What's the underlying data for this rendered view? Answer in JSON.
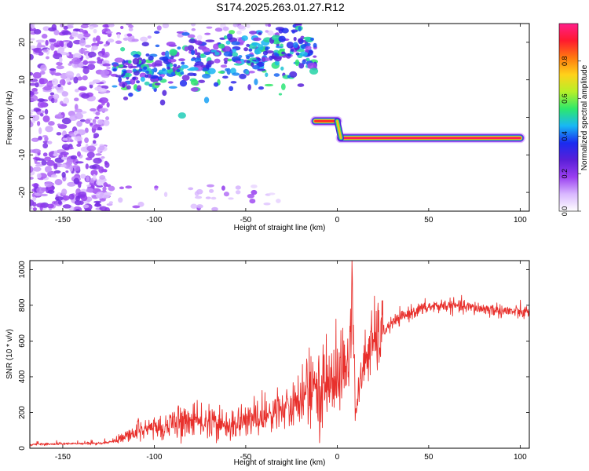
{
  "figure_title": "S174.2025.263.01.27.R12",
  "colors": {
    "snr_line": "#e8302c",
    "axis": "#000000",
    "colormap": [
      "#ffffff",
      "#d9b8ff",
      "#9a3ff0",
      "#5a1fd8",
      "#1a2bf0",
      "#18b7f5",
      "#2de86b",
      "#b6f028",
      "#ffd21a",
      "#ff7a10",
      "#ff1a2e",
      "#ff1f8a"
    ]
  },
  "chart_data": [
    {
      "type": "heatmap",
      "title": "",
      "xlabel": "Height of straight line (km)",
      "ylabel": "Frequency (Hz)",
      "xlim": [
        -168,
        105
      ],
      "ylim": [
        -25,
        25
      ],
      "x_ticks": [
        -150,
        -100,
        -50,
        0,
        50,
        100
      ],
      "y_ticks": [
        -20,
        -10,
        0,
        10,
        20
      ],
      "colorbar": {
        "label": "Normalized spectral amplitude",
        "range": [
          0,
          1
        ],
        "ticks": [
          0.0,
          0.2,
          0.4,
          0.6,
          0.8
        ]
      },
      "features": [
        {
          "name": "low-amplitude scatter",
          "x_range": [
            -168,
            -125
          ],
          "y_range": [
            -25,
            25
          ],
          "amplitude": 0.15
        },
        {
          "name": "band",
          "x_start": -122,
          "y_start": 12,
          "x_end": -12,
          "y_end": 18,
          "amplitude": 0.45
        },
        {
          "name": "carrier",
          "x_start": -12,
          "y_start": -1,
          "x_end": 0,
          "y_end": -1,
          "amplitude": 0.9
        },
        {
          "name": "carrier",
          "x_start": 2,
          "y_start": -5.5,
          "x_end": 100,
          "y_end": -5.5,
          "amplitude": 0.95
        }
      ]
    },
    {
      "type": "line",
      "title": "",
      "xlabel": "Height of straight line (km)",
      "ylabel": "SNR (10 * v/v)",
      "xlim": [
        -168,
        105
      ],
      "ylim": [
        0,
        1050
      ],
      "x_ticks": [
        -150,
        -100,
        -50,
        0,
        50,
        100
      ],
      "y_ticks": [
        0,
        200,
        400,
        600,
        800,
        1000
      ],
      "series": [
        {
          "name": "SNR",
          "x": [
            -168,
            -150,
            -130,
            -120,
            -110,
            -100,
            -90,
            -80,
            -70,
            -60,
            -50,
            -40,
            -30,
            -20,
            -15,
            -10,
            -5,
            0,
            5,
            7,
            8,
            10,
            15,
            20,
            25,
            30,
            40,
            50,
            60,
            70,
            80,
            90,
            100,
            105
          ],
          "y": [
            20,
            25,
            25,
            40,
            90,
            110,
            130,
            150,
            140,
            120,
            150,
            180,
            200,
            260,
            300,
            340,
            370,
            400,
            450,
            550,
            960,
            200,
            500,
            600,
            650,
            700,
            760,
            790,
            800,
            790,
            780,
            770,
            760,
            760
          ]
        }
      ]
    }
  ]
}
